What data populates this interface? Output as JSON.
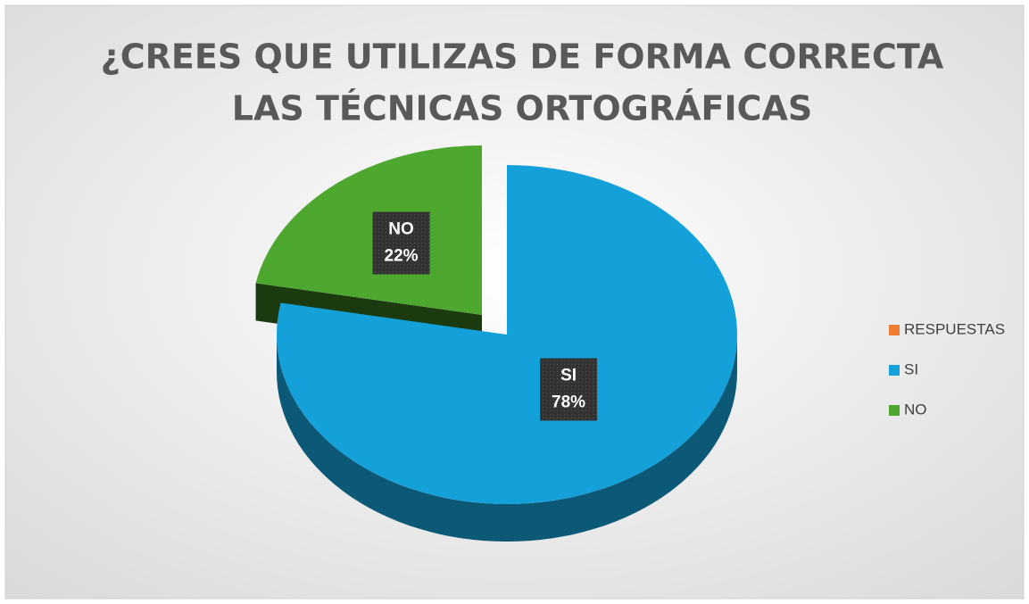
{
  "chart_data": {
    "type": "pie3d",
    "title": [
      "¿CREES QUE UTILIZAS DE FORMA CORRECTA",
      "LAS TÉCNICAS ORTOGRÁFICAS"
    ],
    "categories": [
      "RESPUESTAS",
      "SI",
      "NO"
    ],
    "values": [
      0,
      78,
      22
    ],
    "value_labels": [
      null,
      "78%",
      "22%"
    ],
    "colors": [
      "#ed7d31",
      "#14a0d8",
      "#4ea72e"
    ],
    "legend": "right"
  }
}
